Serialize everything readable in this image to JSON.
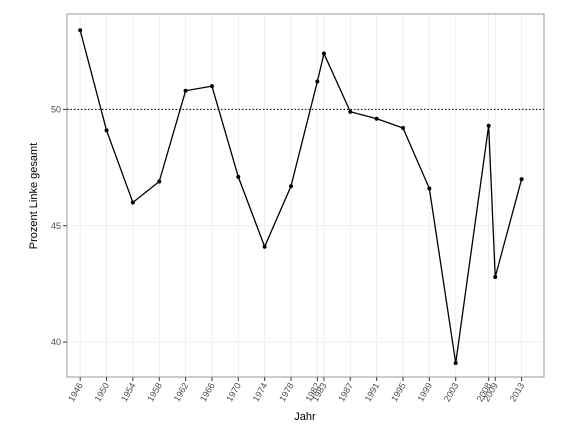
{
  "chart_data": {
    "type": "line",
    "xlabel": "Jahr",
    "ylabel": "Prozent Linke gesamt",
    "x": [
      1946,
      1950,
      1954,
      1958,
      1962,
      1966,
      1970,
      1974,
      1978,
      1982,
      1983,
      1987,
      1991,
      1995,
      1999,
      2003,
      2008,
      2009,
      2013
    ],
    "series": [
      {
        "name": "Prozent Linke gesamt",
        "color": "#000000",
        "values": [
          53.4,
          49.1,
          46.0,
          46.9,
          50.8,
          51.0,
          47.1,
          44.1,
          46.7,
          51.2,
          52.4,
          49.9,
          49.6,
          49.2,
          46.6,
          39.1,
          49.3,
          42.8,
          47.0
        ]
      }
    ],
    "xlim": [
      1944.0,
      2016.4
    ],
    "ylim": [
      38.5,
      54.1
    ],
    "xticks": [
      1946,
      1950,
      1954,
      1958,
      1962,
      1966,
      1970,
      1974,
      1978,
      1982,
      1983,
      1987,
      1991,
      1995,
      1999,
      2003,
      2008,
      2009,
      2013
    ],
    "yticks": [
      40,
      45,
      50
    ],
    "hline": 50,
    "grid": true
  }
}
